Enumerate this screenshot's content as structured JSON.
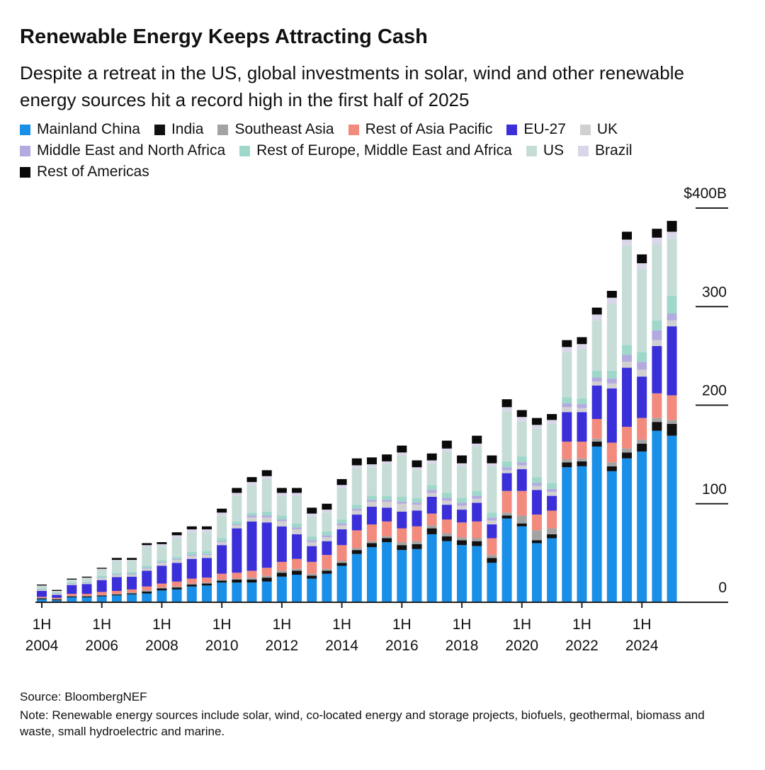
{
  "chart_data": {
    "type": "stacked_bar",
    "title": "Renewable Energy Keeps Attracting Cash",
    "subtitle": "Despite a retreat in the US, global investments in solar, wind and other renewable energy sources hit a record high in the first half of 2025",
    "source": "Source: BloombergNEF",
    "note": "Note: Renewable energy sources include solar, wind, co-located energy and storage projects, biofuels, geothermal, biomass and waste, small hydroelectric and marine.",
    "categories": [
      "1H\n2004",
      null,
      null,
      null,
      "1H\n2006",
      null,
      null,
      null,
      "1H\n2008",
      null,
      null,
      null,
      "1H\n2010",
      null,
      null,
      null,
      "1H\n2012",
      null,
      null,
      null,
      "1H\n2014",
      null,
      null,
      null,
      "1H\n2016",
      null,
      null,
      null,
      "1H\n2018",
      null,
      null,
      null,
      "1H\n2020",
      null,
      null,
      null,
      "1H\n2022",
      null,
      null,
      null,
      "1H\n2024",
      null,
      null
    ],
    "ylim": [
      0,
      400
    ],
    "yticks": [
      0,
      100,
      200,
      300,
      {
        "value": 400,
        "label": "$400B"
      }
    ],
    "series": [
      {
        "name": "Mainland China",
        "color": "#1a8fe8",
        "values": [
          3,
          2,
          5,
          5,
          6,
          7,
          8,
          9,
          12,
          13,
          16,
          17,
          20,
          20,
          20,
          21,
          26,
          28,
          24,
          29,
          37,
          49,
          56,
          61,
          53,
          54,
          69,
          62,
          58,
          57,
          40,
          85,
          77,
          60,
          65,
          137,
          138,
          158,
          133,
          146,
          153,
          174,
          169
        ]
      },
      {
        "name": "India",
        "color": "#111111",
        "values": [
          1,
          1,
          1,
          1,
          1,
          1,
          1,
          2,
          2,
          2,
          2,
          2,
          2,
          3,
          3,
          4,
          4,
          4,
          3,
          3,
          3,
          4,
          4,
          4,
          5,
          5,
          6,
          5,
          5,
          5,
          5,
          3,
          3,
          3,
          4,
          5,
          5,
          5,
          5,
          6,
          8,
          9,
          12
        ]
      },
      {
        "name": "Southeast Asia",
        "color": "#a3a3a3",
        "values": [
          0.5,
          0.5,
          0.5,
          0.5,
          0.5,
          0.5,
          1,
          1,
          1,
          1,
          1,
          1,
          1,
          1,
          2,
          2,
          2,
          2,
          2,
          2,
          2,
          2,
          2,
          2,
          3,
          3,
          3,
          3,
          3,
          3,
          3,
          3,
          8,
          10,
          6,
          3,
          3,
          3,
          4,
          4,
          4,
          4,
          4
        ]
      },
      {
        "name": "Rest of Asia Pacific",
        "color": "#f28a7e",
        "values": [
          1,
          1,
          2,
          2,
          3,
          3,
          3,
          4,
          4,
          5,
          5,
          5,
          6,
          6,
          7,
          8,
          9,
          10,
          12,
          14,
          16,
          18,
          17,
          15,
          14,
          15,
          12,
          14,
          15,
          17,
          17,
          22,
          25,
          16,
          18,
          18,
          17,
          20,
          20,
          22,
          22,
          25,
          25
        ]
      },
      {
        "name": "EU-27",
        "color": "#3a2fd8",
        "values": [
          6,
          3,
          9,
          10,
          12,
          14,
          13,
          16,
          18,
          19,
          20,
          20,
          29,
          45,
          50,
          46,
          36,
          25,
          16,
          14,
          16,
          16,
          18,
          14,
          17,
          16,
          17,
          15,
          13,
          19,
          14,
          18,
          22,
          25,
          15,
          30,
          30,
          34,
          55,
          60,
          42,
          48,
          70
        ]
      },
      {
        "name": "UK",
        "color": "#d0d0d0",
        "values": [
          1,
          1,
          1,
          1,
          2,
          2,
          2,
          2,
          3,
          3,
          3,
          3,
          3,
          3,
          4,
          5,
          5,
          5,
          4,
          4,
          4,
          4,
          5,
          6,
          8,
          6,
          4,
          4,
          4,
          4,
          4,
          3,
          4,
          4,
          4,
          5,
          4,
          4,
          5,
          6,
          7,
          6,
          6
        ]
      },
      {
        "name": "Middle East and North Africa",
        "color": "#b3aadf",
        "values": [
          0.5,
          0.5,
          0.5,
          0.5,
          0.5,
          0.5,
          1,
          1,
          1,
          1,
          1,
          1,
          1,
          1,
          2,
          2,
          2,
          2,
          2,
          2,
          2,
          2,
          2,
          2,
          2,
          2,
          3,
          3,
          3,
          3,
          3,
          3,
          3,
          3,
          3,
          4,
          4,
          4,
          5,
          7,
          8,
          10,
          7
        ]
      },
      {
        "name": "Rest of Europe, Middle East and Africa",
        "color": "#9fd8ca",
        "values": [
          1,
          1,
          1,
          1,
          2,
          2,
          2,
          2,
          2,
          2,
          3,
          3,
          3,
          3,
          3,
          4,
          4,
          4,
          4,
          4,
          4,
          4,
          4,
          4,
          5,
          5,
          5,
          5,
          5,
          5,
          5,
          6,
          6,
          6,
          6,
          6,
          6,
          7,
          8,
          10,
          10,
          10,
          18
        ]
      },
      {
        "name": "US",
        "color": "#c6ddd7",
        "values": [
          2.5,
          1,
          2.5,
          3.5,
          6,
          12,
          11,
          19,
          14,
          19,
          20,
          19,
          23,
          26,
          28,
          33,
          20,
          28,
          20,
          19,
          32,
          37,
          29,
          32,
          42,
          28,
          22,
          42,
          32,
          45,
          47,
          51,
          36,
          49,
          60,
          46,
          50,
          51,
          68,
          101,
          84,
          77,
          58
        ]
      },
      {
        "name": "Brazil",
        "color": "#d8d6e8",
        "values": [
          0.5,
          0.5,
          0.5,
          0.5,
          1,
          1,
          1,
          2,
          2,
          3,
          3,
          3,
          3,
          3,
          3,
          3,
          3,
          3,
          3,
          3,
          3,
          3,
          3,
          3,
          3,
          3,
          3,
          3,
          3,
          3,
          3,
          4,
          4,
          4,
          4,
          5,
          5,
          6,
          6,
          6,
          6,
          7,
          7
        ]
      },
      {
        "name": "Rest of Americas",
        "color": "#0a0a0a",
        "values": [
          1,
          1,
          1,
          1,
          1,
          2,
          2,
          2,
          2,
          3,
          3,
          3,
          4,
          5,
          5,
          6,
          5,
          5,
          6,
          6,
          6,
          7,
          7,
          7,
          7,
          7,
          7,
          8,
          8,
          8,
          8,
          8,
          7,
          7,
          6,
          7,
          7,
          7,
          7,
          8,
          9,
          9,
          11
        ]
      }
    ]
  }
}
